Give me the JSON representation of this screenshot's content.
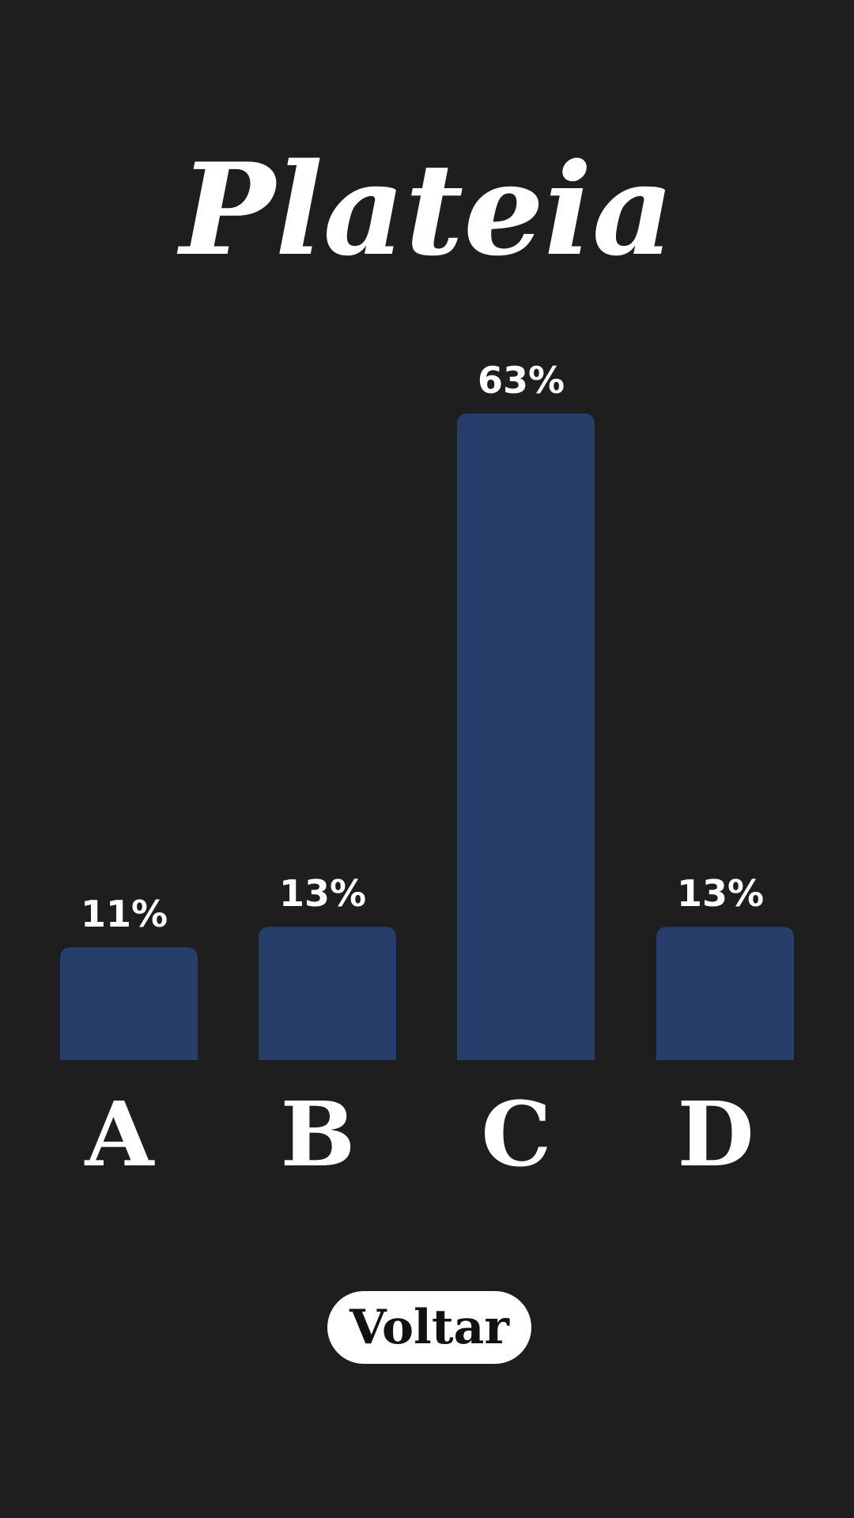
{
  "title": "Plateia",
  "button": {
    "back_label": "Voltar"
  },
  "colors": {
    "background": "#1e1e1e",
    "bar": "#263e69",
    "text": "#ffffff",
    "button_bg": "#ffffff",
    "button_text": "#111111"
  },
  "chart_data": {
    "type": "bar",
    "categories": [
      "A",
      "B",
      "C",
      "D"
    ],
    "values": [
      11,
      13,
      63,
      13
    ],
    "value_labels": [
      "11%",
      "13%",
      "63%",
      "13%"
    ],
    "title": "",
    "xlabel": "",
    "ylabel": "",
    "ylim": [
      0,
      63
    ],
    "grid": false
  }
}
